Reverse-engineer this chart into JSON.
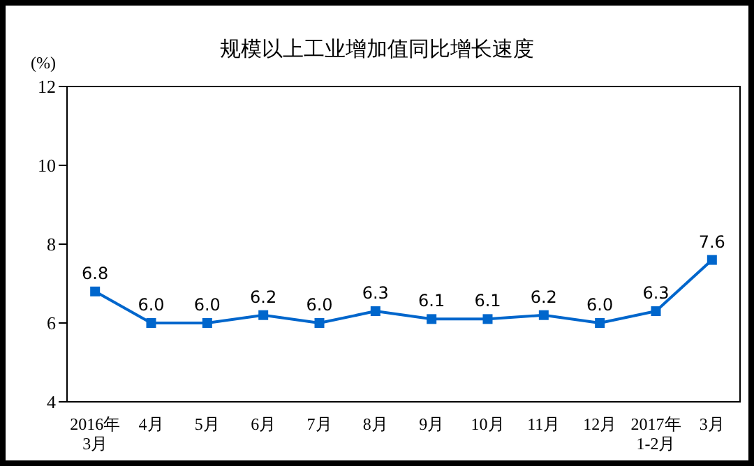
{
  "chart_data": {
    "type": "line",
    "title": "规模以上工业增加值同比增长速度",
    "ylabel": "(%)",
    "categories": [
      "2016年\n3月",
      "4月",
      "5月",
      "6月",
      "7月",
      "8月",
      "9月",
      "10月",
      "11月",
      "12月",
      "2017年\n1-2月",
      "3月"
    ],
    "series": [
      {
        "color": "#0066cc",
        "values": [
          6.8,
          6.0,
          6.0,
          6.2,
          6.0,
          6.3,
          6.1,
          6.1,
          6.2,
          6.0,
          6.3,
          7.6
        ],
        "value_labels": [
          "6.8",
          "6.0",
          "6.0",
          "6.2",
          "6.0",
          "6.3",
          "6.1",
          "6.1",
          "6.2",
          "6.0",
          "6.3",
          "7.6"
        ]
      }
    ],
    "ylim": [
      4,
      12
    ],
    "yticks": [
      4,
      6,
      8,
      10,
      12
    ],
    "marker": "square",
    "line_style": "solid"
  }
}
